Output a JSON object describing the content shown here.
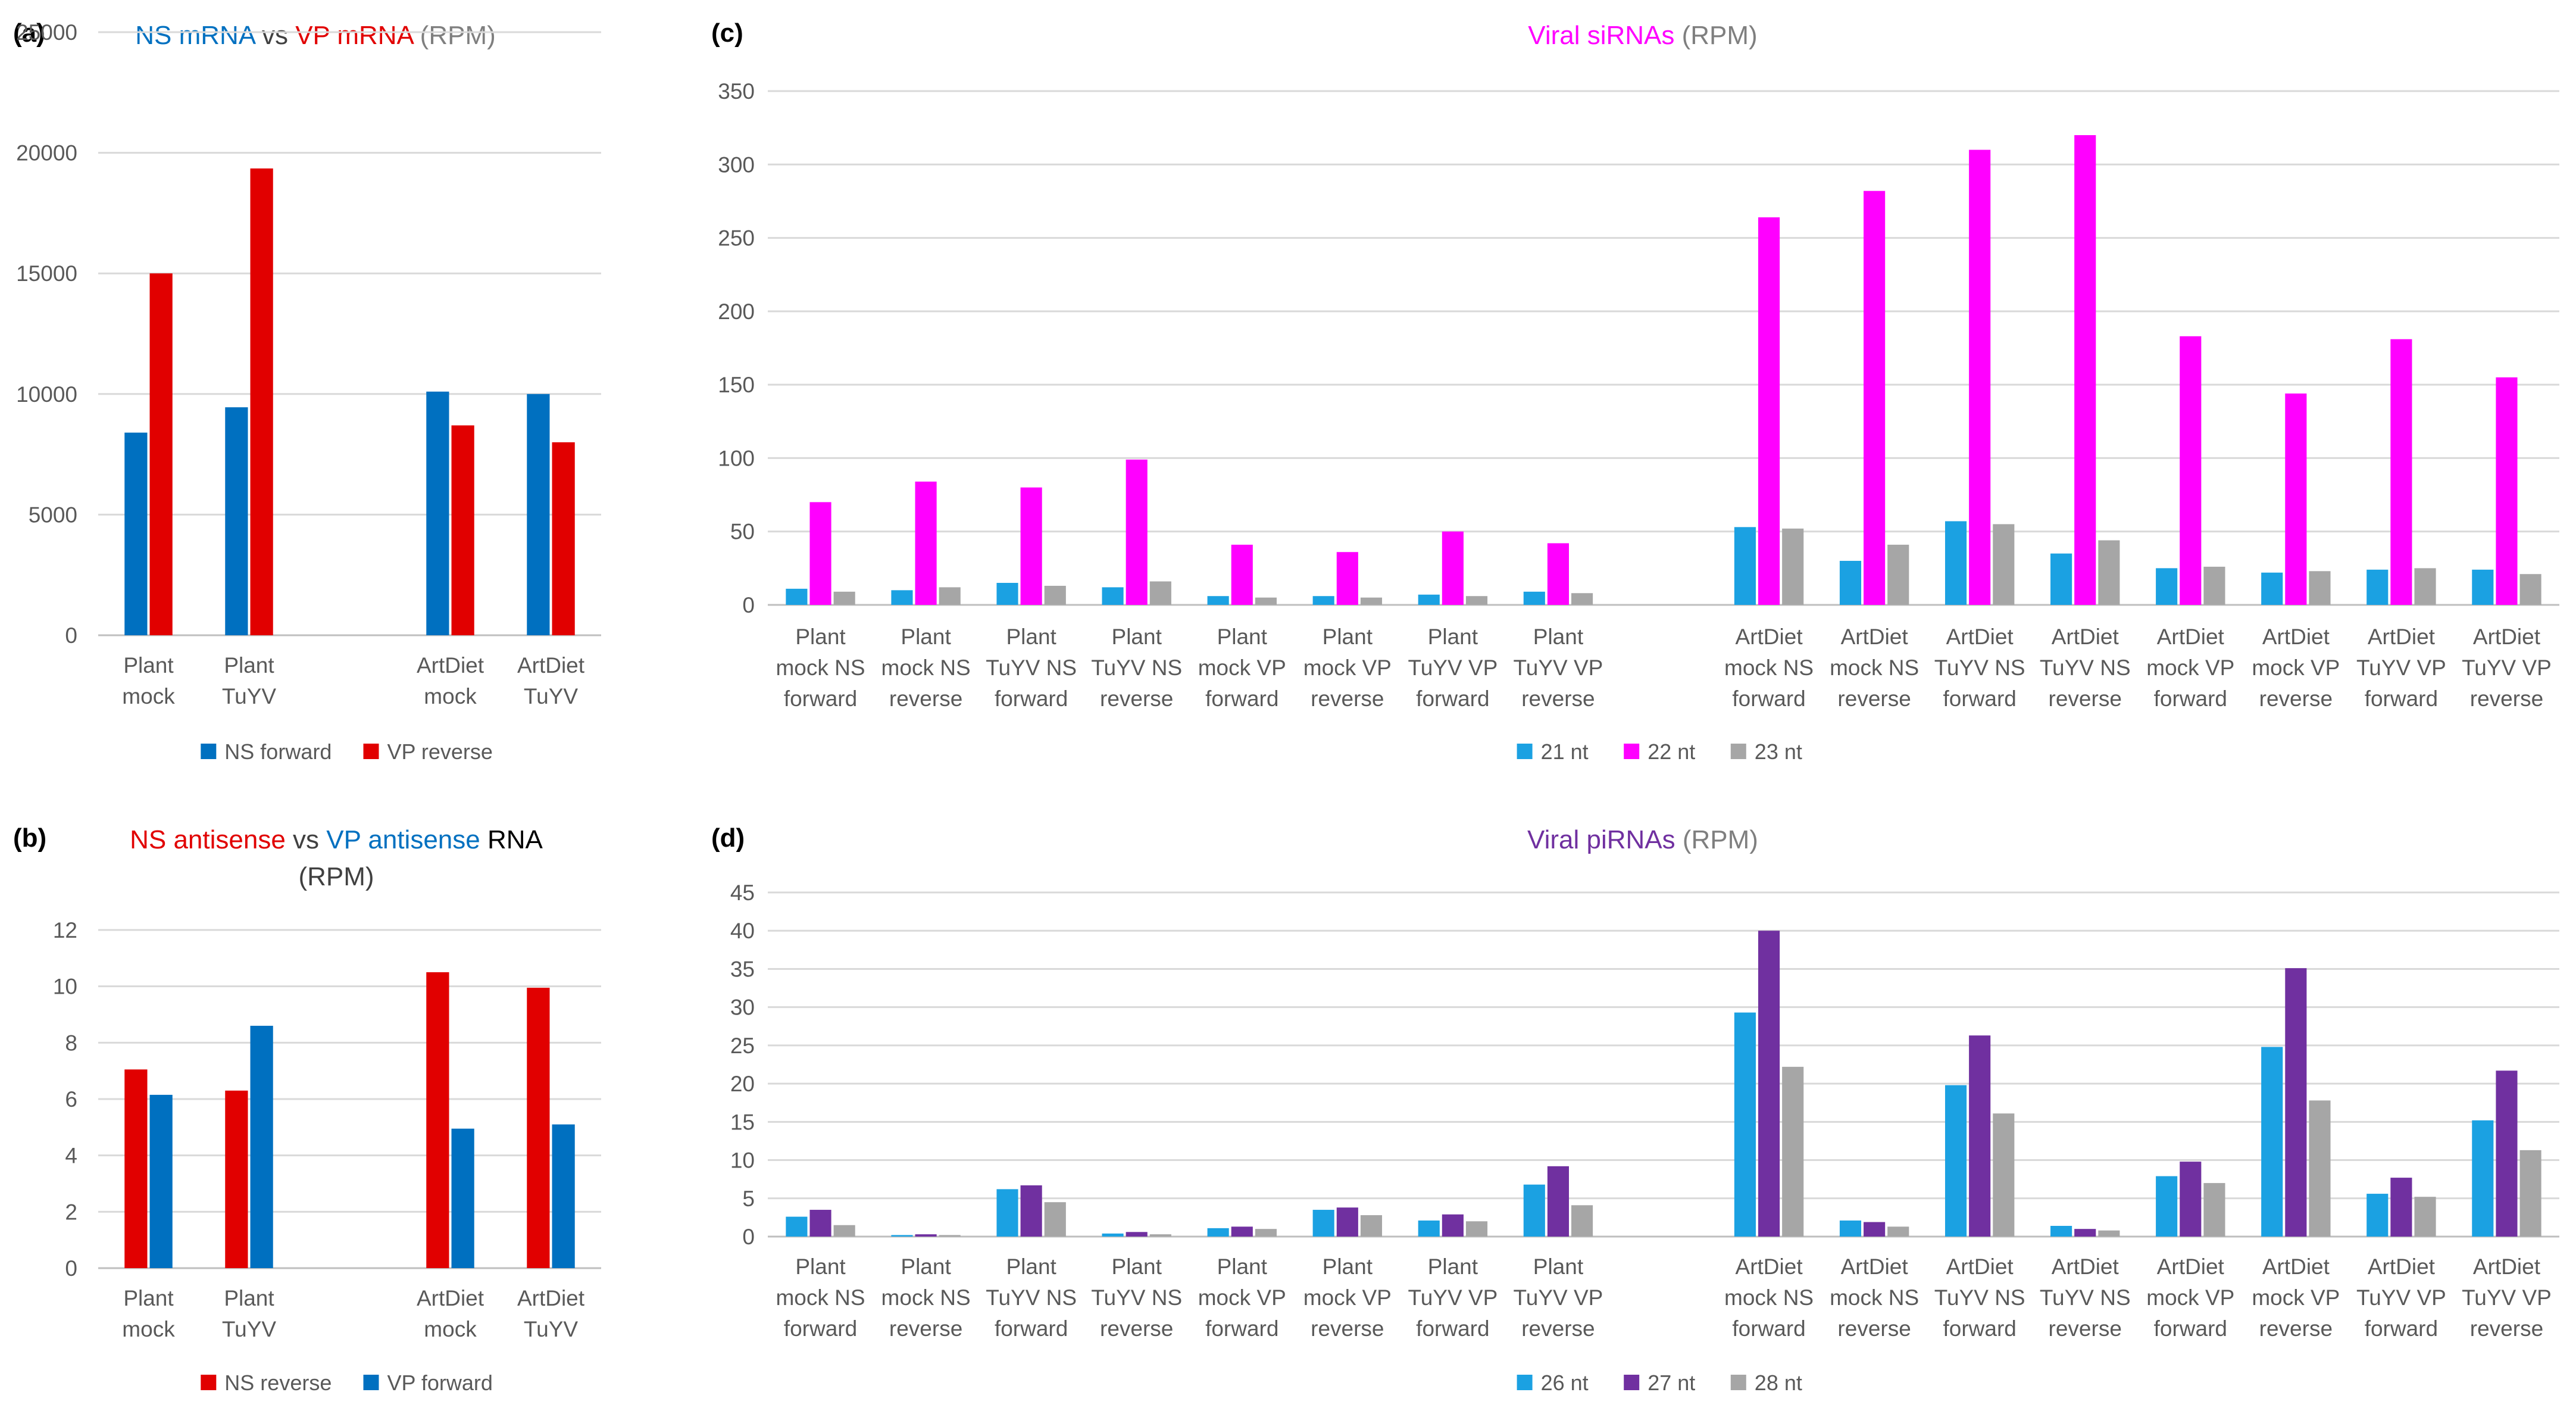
{
  "colors": {
    "ns_blue": "#0070C0",
    "vp_red": "#E10000",
    "magenta": "#FF00FF",
    "purple": "#7030A0",
    "blue21": "#1BA1E2",
    "grey": "#A6A6A6",
    "axis_text": "#595959",
    "grid": "#D9D9D9"
  },
  "chart_data": [
    {
      "id": "a",
      "panel_label": "(a)",
      "type": "bar",
      "title_parts": [
        {
          "text": "NS mRNA",
          "color": "#0070C0"
        },
        {
          "text": " vs ",
          "color": "#404040"
        },
        {
          "text": "VP mRNA",
          "color": "#E10000"
        },
        {
          "text": " (RPM)",
          "color": "#7F7F7F"
        }
      ],
      "categories": [
        [
          "Plant",
          "mock"
        ],
        [
          "Plant",
          "TuYV"
        ],
        [
          "",
          ""
        ],
        [
          "ArtDiet",
          "mock"
        ],
        [
          "ArtDiet",
          "TuYV"
        ]
      ],
      "series": [
        {
          "name": "NS forward",
          "color": "#0070C0",
          "values": [
            8400,
            9450,
            null,
            10100,
            10000
          ]
        },
        {
          "name": "VP reverse",
          "color": "#E10000",
          "values": [
            15000,
            19350,
            null,
            8700,
            8000
          ]
        }
      ],
      "ylim": [
        0,
        25000
      ],
      "yticks": [
        "0",
        "5000",
        "10000",
        "15000",
        "20000",
        "25000"
      ],
      "grid": true,
      "legend_position": "bottom"
    },
    {
      "id": "b",
      "panel_label": "(b)",
      "type": "bar",
      "title_parts": [
        {
          "text": "NS antisense",
          "color": "#E10000"
        },
        {
          "text": " vs ",
          "color": "#404040"
        },
        {
          "text": "VP antisense",
          "color": "#0070C0"
        },
        {
          "text": " RNA",
          "color": "#000000"
        }
      ],
      "title_line2": "(RPM)",
      "categories": [
        [
          "Plant",
          "mock"
        ],
        [
          "Plant",
          "TuYV"
        ],
        [
          "",
          ""
        ],
        [
          "ArtDiet",
          "mock"
        ],
        [
          "ArtDiet",
          "TuYV"
        ]
      ],
      "series": [
        {
          "name": "NS reverse",
          "color": "#E10000",
          "values": [
            7.05,
            6.3,
            null,
            10.5,
            9.95
          ]
        },
        {
          "name": "VP forward",
          "color": "#0070C0",
          "values": [
            6.15,
            8.6,
            null,
            4.95,
            5.1
          ]
        }
      ],
      "ylim": [
        0,
        12
      ],
      "yticks": [
        "0",
        "2",
        "4",
        "6",
        "8",
        "10",
        "12"
      ],
      "grid": true,
      "legend_position": "bottom"
    },
    {
      "id": "c",
      "panel_label": "(c)",
      "type": "bar",
      "title_parts": [
        {
          "text": "Viral siRNAs",
          "color": "#FF00FF"
        },
        {
          "text": " (RPM)",
          "color": "#7F7F7F"
        }
      ],
      "categories": [
        [
          "Plant",
          "mock NS",
          "forward"
        ],
        [
          "Plant",
          "mock NS",
          "reverse"
        ],
        [
          "Plant",
          "TuYV NS",
          "forward"
        ],
        [
          "Plant",
          "TuYV NS",
          "reverse"
        ],
        [
          "Plant",
          "mock VP",
          "forward"
        ],
        [
          "Plant",
          "mock VP",
          "reverse"
        ],
        [
          "Plant",
          "TuYV VP",
          "forward"
        ],
        [
          "Plant",
          "TuYV VP",
          "reverse"
        ],
        [
          "",
          "",
          ""
        ],
        [
          "ArtDiet",
          "mock NS",
          "forward"
        ],
        [
          "ArtDiet",
          "mock NS",
          "reverse"
        ],
        [
          "ArtDiet",
          "TuYV NS",
          "forward"
        ],
        [
          "ArtDiet",
          "TuYV NS",
          "reverse"
        ],
        [
          "ArtDiet",
          "mock VP",
          "forward"
        ],
        [
          "ArtDiet",
          "mock VP",
          "reverse"
        ],
        [
          "ArtDiet",
          "TuYV VP",
          "forward"
        ],
        [
          "ArtDiet",
          "TuYV VP",
          "reverse"
        ]
      ],
      "series": [
        {
          "name": "21 nt",
          "color": "#1BA1E2",
          "values": [
            11,
            10,
            15,
            12,
            6,
            6,
            7,
            9,
            null,
            53,
            30,
            57,
            35,
            25,
            22,
            24,
            24
          ]
        },
        {
          "name": "22 nt",
          "color": "#FF00FF",
          "values": [
            70,
            84,
            80,
            99,
            41,
            36,
            50,
            42,
            null,
            264,
            282,
            310,
            320,
            183,
            144,
            181,
            155
          ]
        },
        {
          "name": "23 nt",
          "color": "#A6A6A6",
          "values": [
            9,
            12,
            13,
            16,
            5,
            5,
            6,
            8,
            null,
            52,
            41,
            55,
            44,
            26,
            23,
            25,
            21
          ]
        }
      ],
      "ylim": [
        0,
        350
      ],
      "yticks": [
        "0",
        "50",
        "100",
        "150",
        "200",
        "250",
        "300",
        "350"
      ],
      "grid": true,
      "legend_position": "bottom"
    },
    {
      "id": "d",
      "panel_label": "(d)",
      "type": "bar",
      "title_parts": [
        {
          "text": "Viral piRNAs",
          "color": "#7030A0"
        },
        {
          "text": " (RPM)",
          "color": "#7F7F7F"
        }
      ],
      "categories": [
        [
          "Plant",
          "mock NS",
          "forward"
        ],
        [
          "Plant",
          "mock NS",
          "reverse"
        ],
        [
          "Plant",
          "TuYV NS",
          "forward"
        ],
        [
          "Plant",
          "TuYV NS",
          "reverse"
        ],
        [
          "Plant",
          "mock VP",
          "forward"
        ],
        [
          "Plant",
          "mock VP",
          "reverse"
        ],
        [
          "Plant",
          "TuYV VP",
          "forward"
        ],
        [
          "Plant",
          "TuYV VP",
          "reverse"
        ],
        [
          "",
          "",
          ""
        ],
        [
          "ArtDiet",
          "mock NS",
          "forward"
        ],
        [
          "ArtDiet",
          "mock NS",
          "reverse"
        ],
        [
          "ArtDiet",
          "TuYV NS",
          "forward"
        ],
        [
          "ArtDiet",
          "TuYV NS",
          "reverse"
        ],
        [
          "ArtDiet",
          "mock VP",
          "forward"
        ],
        [
          "ArtDiet",
          "mock VP",
          "reverse"
        ],
        [
          "ArtDiet",
          "TuYV VP",
          "forward"
        ],
        [
          "ArtDiet",
          "TuYV VP",
          "reverse"
        ]
      ],
      "series": [
        {
          "name": "26 nt",
          "color": "#1BA1E2",
          "values": [
            2.6,
            0.2,
            6.2,
            0.4,
            1.1,
            3.5,
            2.1,
            6.8,
            null,
            29.3,
            2.1,
            19.8,
            1.4,
            7.9,
            24.8,
            5.6,
            15.2
          ]
        },
        {
          "name": "27 nt",
          "color": "#7030A0",
          "values": [
            3.5,
            0.3,
            6.7,
            0.6,
            1.3,
            3.8,
            2.9,
            9.2,
            null,
            40.0,
            1.9,
            26.3,
            1.0,
            9.8,
            35.1,
            7.7,
            21.7
          ]
        },
        {
          "name": "28 nt",
          "color": "#A6A6A6",
          "values": [
            1.5,
            0.2,
            4.5,
            0.3,
            1.0,
            2.8,
            2.0,
            4.1,
            null,
            22.2,
            1.3,
            16.1,
            0.8,
            7.0,
            17.8,
            5.2,
            11.3
          ]
        }
      ],
      "ylim": [
        0,
        45
      ],
      "yticks": [
        "0",
        "5",
        "10",
        "15",
        "20",
        "25",
        "30",
        "35",
        "40",
        "45"
      ],
      "grid": true,
      "legend_position": "bottom"
    }
  ]
}
